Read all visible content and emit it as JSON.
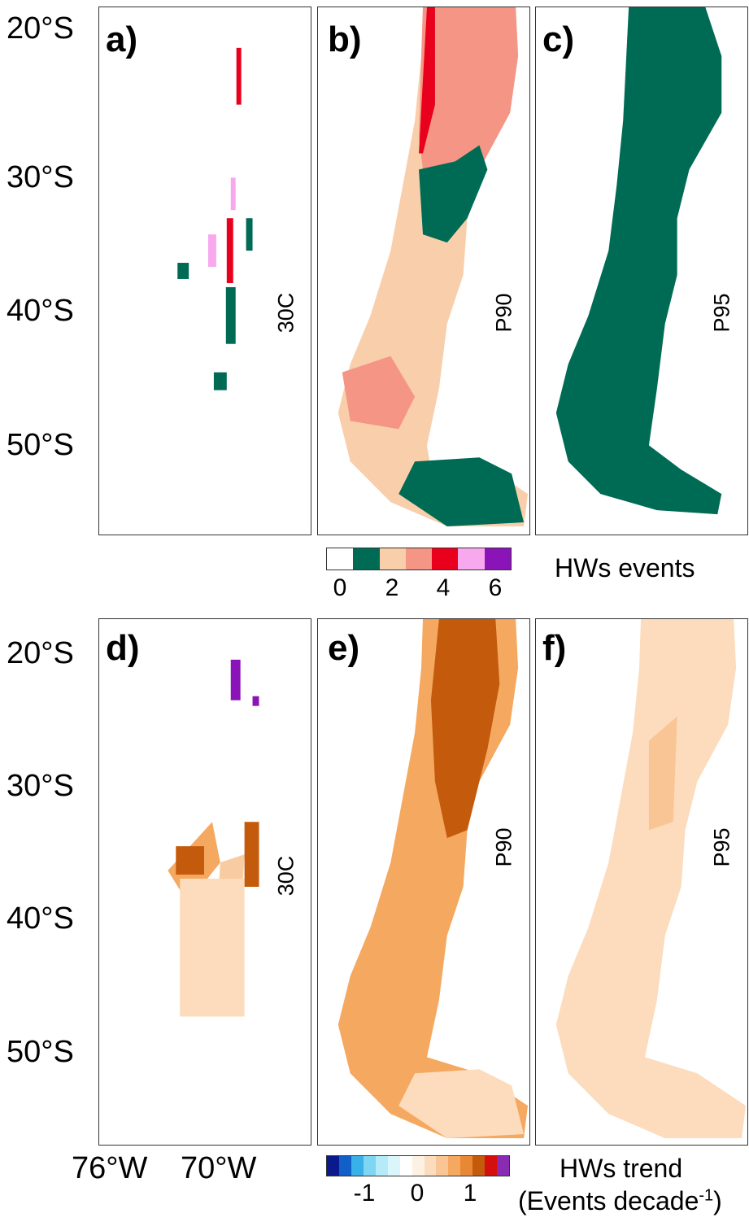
{
  "lat_labels": [
    "20°S",
    "30°S",
    "40°S",
    "50°S"
  ],
  "lon_labels": [
    "76°W",
    "70°W"
  ],
  "top_row": [
    {
      "label": "a)",
      "threshold": "30C"
    },
    {
      "label": "b)",
      "threshold": "P90"
    },
    {
      "label": "c)",
      "threshold": "P95"
    }
  ],
  "bottom_row": [
    {
      "label": "d)",
      "threshold": "30C"
    },
    {
      "label": "e)",
      "threshold": "P90"
    },
    {
      "label": "f)",
      "threshold": "P95"
    }
  ],
  "events_legend": {
    "title": "HWs events",
    "colors": [
      "#ffffff",
      "#006b54",
      "#f9ceab",
      "#f59585",
      "#e8001c",
      "#f8a9ee",
      "#8b14b8"
    ],
    "ticks": [
      "0",
      "2",
      "4",
      "6"
    ]
  },
  "trend_legend": {
    "title": "HWs trend",
    "subtitle": "(Events decade",
    "superscript": "-1",
    "close": ")",
    "colors": [
      "#0a1a8c",
      "#1060c8",
      "#3ab0e8",
      "#7fd6f2",
      "#b5ebf8",
      "#dbf6fb",
      "#ffffff",
      "#fdf1e4",
      "#fcdcbd",
      "#f9c595",
      "#f5a860",
      "#e98834",
      "#c45a0c",
      "#d50e0e",
      "#8a2bb4"
    ],
    "ticks": [
      "-1",
      "0",
      "1"
    ]
  }
}
